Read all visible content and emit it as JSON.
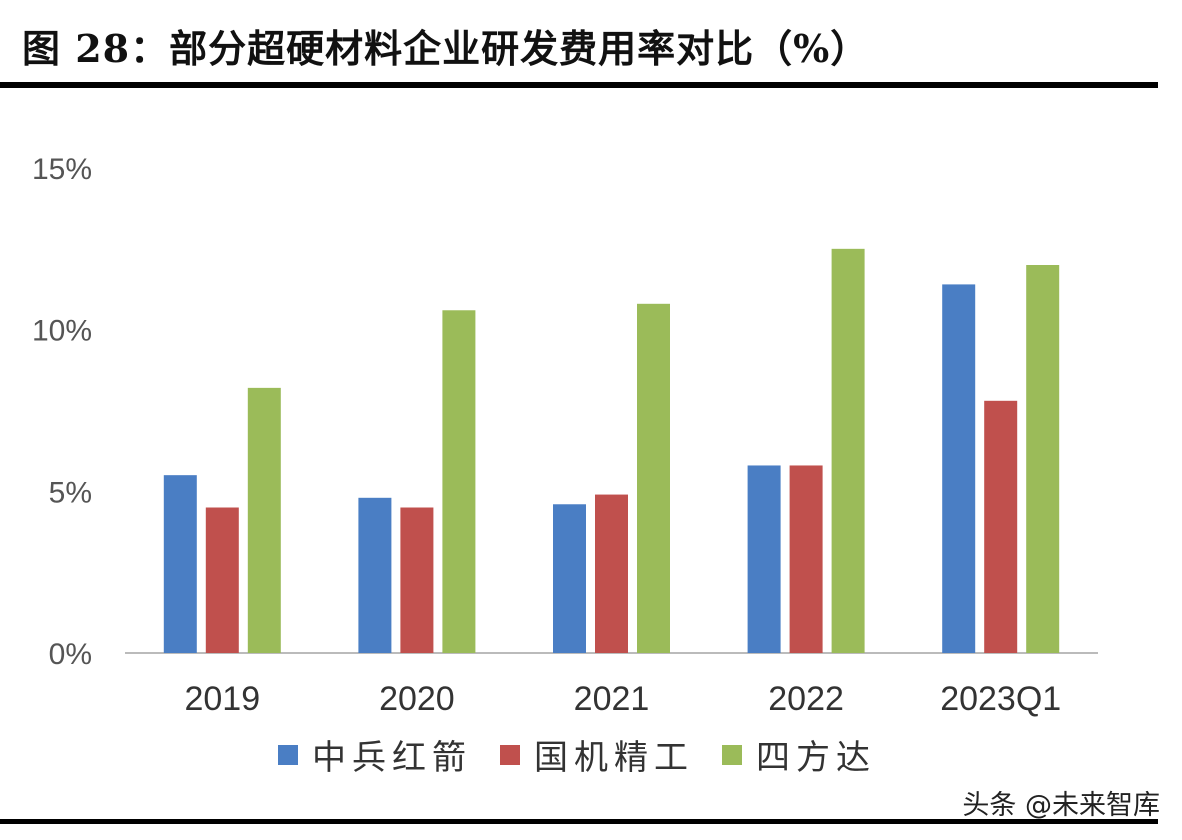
{
  "title": "图 28：部分超硬材料企业研发费用率对比（%）",
  "watermark": "头条 @未来智库",
  "chart_data": {
    "type": "bar",
    "title": "图 28：部分超硬材料企业研发费用率对比（%）",
    "categories": [
      "2019",
      "2020",
      "2021",
      "2022",
      "2023Q1"
    ],
    "series": [
      {
        "name": "中兵红箭",
        "color": "#4a7ec4",
        "values": [
          5.5,
          4.8,
          4.6,
          5.8,
          11.4
        ]
      },
      {
        "name": "国机精工",
        "color": "#c0504d",
        "values": [
          4.5,
          4.5,
          4.9,
          5.8,
          7.8
        ]
      },
      {
        "name": "四方达",
        "color": "#9bbb59",
        "values": [
          8.2,
          10.6,
          10.8,
          12.5,
          12.0
        ]
      }
    ],
    "yticks": [
      "0%",
      "5%",
      "10%",
      "15%"
    ],
    "ylim": [
      0,
      15
    ],
    "grid": false,
    "legend": "bottom"
  }
}
